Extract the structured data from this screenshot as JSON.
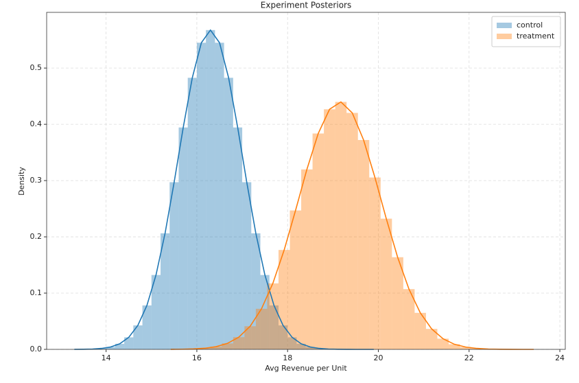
{
  "chart_data": {
    "type": "histogram",
    "title": "Experiment Posteriors",
    "x_label": "Avg Revenue per Unit",
    "y_label": "Density",
    "xlim": [
      12.69,
      24.12
    ],
    "ylim": [
      0,
      0.599
    ],
    "xticks": [
      14,
      16,
      18,
      20,
      22,
      24
    ],
    "yticks": [
      {
        "value": 0,
        "label": "0.0"
      },
      0.1,
      0.2,
      0.3,
      0.4,
      0.5
    ],
    "grid": true,
    "legend": "upper right",
    "series": [
      {
        "name": "control",
        "color": "#1f77b4",
        "bins": [
          13.2,
          13.4,
          13.6,
          13.8,
          14.0,
          14.2,
          14.4,
          14.6,
          14.8,
          15.0,
          15.2,
          15.4,
          15.6,
          15.8,
          16.0,
          16.2,
          16.4,
          16.6,
          16.8,
          17.0,
          17.2,
          17.4,
          17.6,
          17.8,
          18.0,
          18.2,
          18.4,
          18.6,
          18.8,
          19.0,
          19.2,
          19.4,
          19.6,
          19.8,
          20.0
        ],
        "values": [
          0.0001,
          0.0002,
          0.0006,
          0.0017,
          0.0042,
          0.0099,
          0.0214,
          0.0426,
          0.0781,
          0.1322,
          0.2063,
          0.2971,
          0.3944,
          0.4827,
          0.545,
          0.5675,
          0.545,
          0.4827,
          0.3944,
          0.2971,
          0.2063,
          0.1322,
          0.0781,
          0.0426,
          0.0214,
          0.0099,
          0.0042,
          0.0017,
          0.0006,
          0.0002,
          0.0001,
          0.0,
          0.0,
          0.0
        ]
      },
      {
        "name": "treatment",
        "color": "#ff7f0e",
        "bins": [
          15.3,
          15.55,
          15.8,
          16.05,
          16.3,
          16.55,
          16.8,
          17.05,
          17.3,
          17.55,
          17.8,
          18.05,
          18.3,
          18.55,
          18.8,
          19.05,
          19.3,
          19.55,
          19.8,
          20.05,
          20.3,
          20.55,
          20.8,
          21.05,
          21.3,
          21.55,
          21.8,
          22.05,
          22.3,
          22.55,
          22.8,
          23.05,
          23.3,
          23.55
        ],
        "values": [
          0.0001,
          0.0003,
          0.0008,
          0.002,
          0.0048,
          0.0106,
          0.0217,
          0.0411,
          0.0721,
          0.1173,
          0.1767,
          0.2469,
          0.3198,
          0.3837,
          0.4267,
          0.4398,
          0.4203,
          0.3721,
          0.3055,
          0.2323,
          0.1638,
          0.1071,
          0.0649,
          0.0364,
          0.019,
          0.0091,
          0.0041,
          0.0017,
          0.0006,
          0.0002,
          0.0001,
          0.0,
          0.0
        ]
      }
    ]
  }
}
